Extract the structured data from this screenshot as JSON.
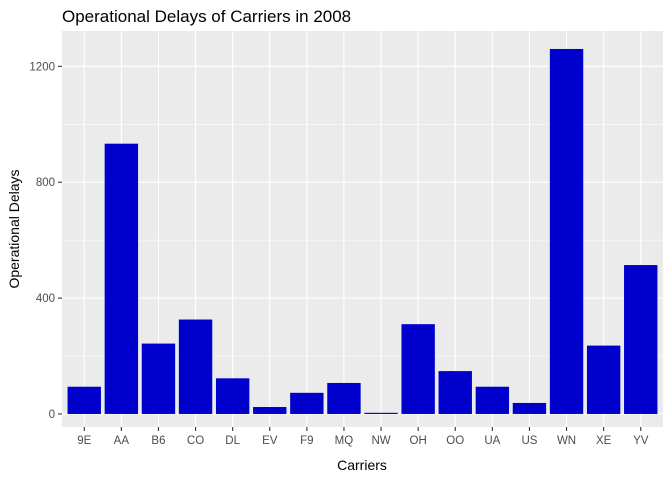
{
  "chart_data": {
    "type": "bar",
    "title": "Operational Delays of Carriers in 2008",
    "xlabel": "Carriers",
    "ylabel": "Operational Delays",
    "categories": [
      "9E",
      "AA",
      "B6",
      "CO",
      "DL",
      "EV",
      "F9",
      "MQ",
      "NW",
      "OH",
      "OO",
      "UA",
      "US",
      "WN",
      "XE",
      "YV"
    ],
    "values": [
      94,
      933,
      243,
      326,
      123,
      24,
      73,
      107,
      4,
      310,
      148,
      94,
      38,
      1260,
      236,
      514
    ],
    "ylim": [
      -45,
      1322
    ],
    "yticks": [
      0,
      400,
      800,
      1200
    ],
    "yticks_minor": [
      200,
      600,
      1000
    ],
    "grid": true,
    "legend": "none",
    "colors": {
      "bar": "#0000CD",
      "panel": "#EBEBEB",
      "grid": "#FFFFFF",
      "tick": "#333333"
    }
  }
}
